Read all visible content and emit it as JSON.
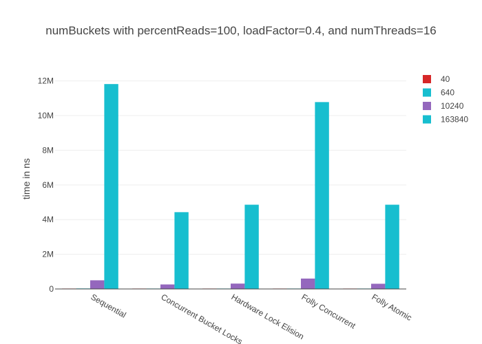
{
  "chart_data": {
    "type": "bar",
    "title": "numBuckets with percentReads=100, loadFactor=0.4, and numThreads=16",
    "xlabel": "",
    "ylabel": "time in ns",
    "categories": [
      "Sequential",
      "Concurrent Bucket Locks",
      "Hardware Lock Elision",
      "Folly Concurrent",
      "Folly Atomic"
    ],
    "ylim": [
      0,
      12700000
    ],
    "yticks": [
      0,
      2000000,
      4000000,
      6000000,
      8000000,
      10000000,
      12000000
    ],
    "ytick_labels": [
      "0",
      "2M",
      "4M",
      "6M",
      "8M",
      "10M",
      "12M"
    ],
    "grid": true,
    "legend_position": "top-right",
    "series": [
      {
        "name": "40",
        "color": "#d62728",
        "values": [
          2000,
          2000,
          2000,
          2000,
          2000
        ]
      },
      {
        "name": "640",
        "color": "#17becf",
        "values": [
          30000,
          25000,
          25000,
          25000,
          25000
        ]
      },
      {
        "name": "10240",
        "color": "#9467bd",
        "values": [
          500000,
          260000,
          310000,
          600000,
          300000
        ]
      },
      {
        "name": "163840",
        "color": "#17becf",
        "values": [
          11820000,
          4430000,
          4860000,
          10780000,
          4860000
        ]
      }
    ]
  }
}
